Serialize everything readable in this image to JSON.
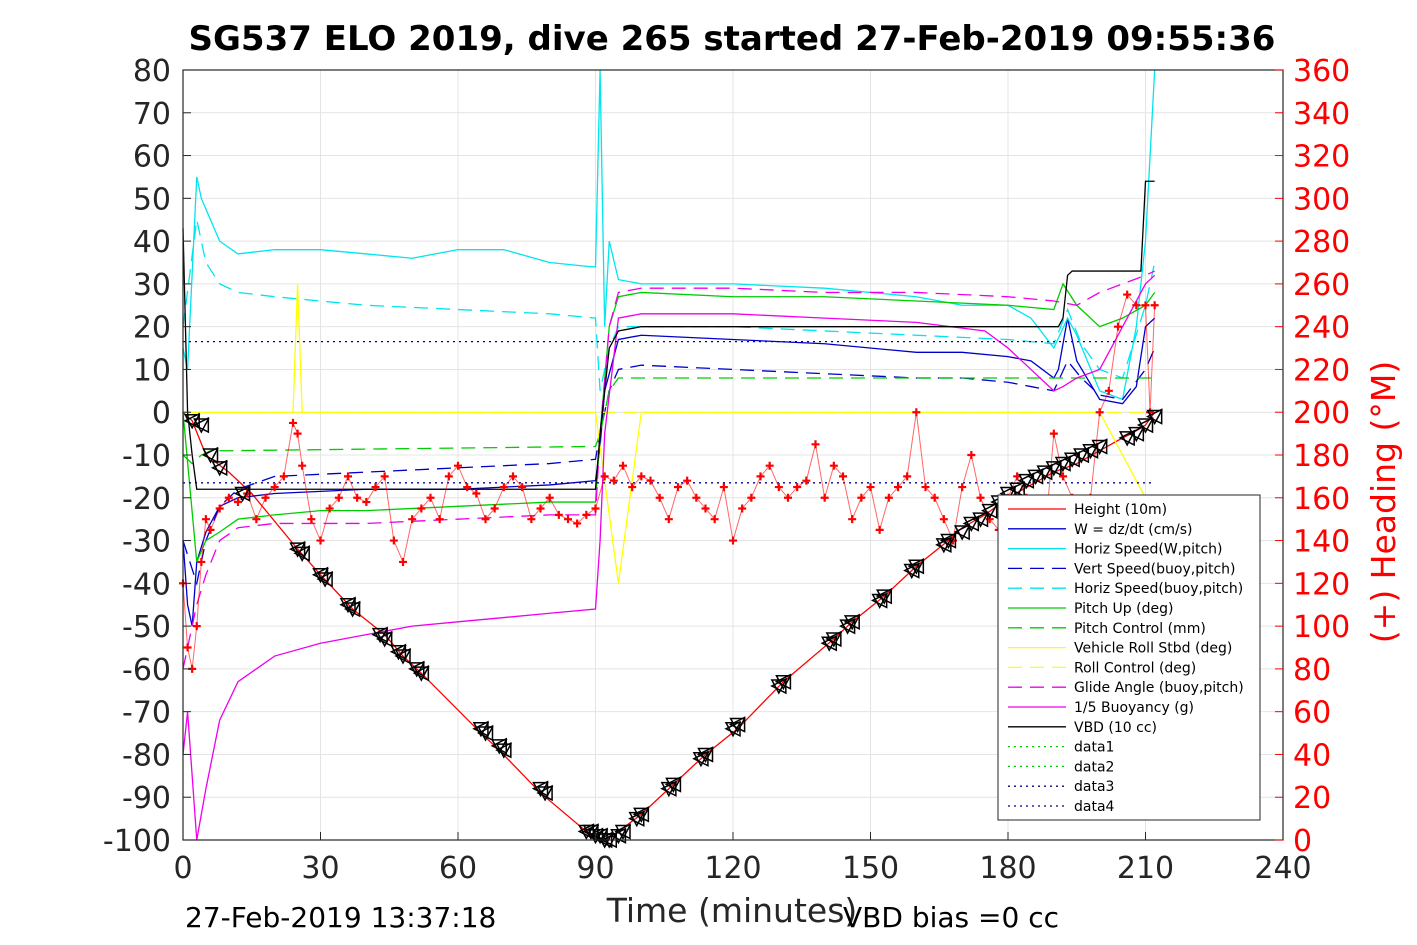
{
  "title": "SG537 ELO 2019, dive 265 started 27-Feb-2019 09:55:36",
  "footer_left": "27-Feb-2019 13:37:18",
  "footer_right": "VBD bias =0 cc",
  "colors": {
    "height": "#ff0000",
    "w": "#0000cd",
    "horiz_w": "#00e5ee",
    "vert_buoy": "#0000cd",
    "horiz_buoy": "#00e5ee",
    "pitch_up": "#00cc00",
    "pitch_ctrl": "#00cc00",
    "roll": "#ffff00",
    "roll_ctrl": "#ffff00",
    "glide": "#ee00ee",
    "buoyancy": "#ee00ee",
    "vbd": "#000000",
    "heading": "#ff0000",
    "data3": "#00008b",
    "right_axis": "#ff0000"
  },
  "chart_data": {
    "type": "line",
    "title": "SG537 ELO 2019, dive 265 started 27-Feb-2019 09:55:36",
    "xlabel": "Time (minutes)",
    "ylabel": "",
    "ylabel_right": "(+) Heading (°M)",
    "xlim": [
      0,
      240
    ],
    "ylim": [
      -100,
      80
    ],
    "ylim_right": [
      0,
      360
    ],
    "x_ticks": [
      0,
      30,
      60,
      90,
      120,
      150,
      180,
      210,
      240
    ],
    "y_ticks": [
      80,
      70,
      60,
      50,
      40,
      30,
      20,
      10,
      0,
      -10,
      -20,
      -30,
      -40,
      -50,
      -60,
      -70,
      -80,
      -90,
      -100
    ],
    "y_ticks_right": [
      360,
      340,
      320,
      300,
      280,
      260,
      240,
      220,
      200,
      180,
      160,
      140,
      120,
      100,
      80,
      60,
      40,
      20,
      0
    ],
    "grid": true,
    "legend_position": "lower-right",
    "legend": [
      "Height (10m)",
      "W = dz/dt (cm/s)",
      "Horiz Speed(W,pitch)",
      "Vert Speed(buoy,pitch)",
      "Horiz Speed(buoy,pitch)",
      "Pitch Up (deg)",
      "Pitch Control (mm)",
      "Vehicle Roll Stbd (deg)",
      "Roll Control (deg)",
      "Glide Angle (buoy,pitch)",
      "1/5 Buoyancy (g)",
      "VBD (10 cc)",
      "data1",
      "data2",
      "data3",
      "data4"
    ],
    "series": [
      {
        "name": "Height (10m)",
        "style": "solid",
        "color": "#ff0000",
        "x": [
          0,
          2,
          5,
          10,
          15,
          25,
          30,
          37,
          44,
          48,
          52,
          65,
          69,
          78,
          88,
          90,
          92,
          95,
          100,
          107,
          114,
          121,
          131,
          142,
          146,
          153,
          160,
          167,
          170,
          175,
          180,
          185,
          190,
          195,
          200,
          205,
          207,
          210,
          212
        ],
        "y": [
          0,
          -2,
          -10,
          -14,
          -19,
          -32,
          -38,
          -46,
          -52,
          -57,
          -61,
          -75,
          -79,
          -89,
          -98,
          -99,
          -100,
          -98,
          -94,
          -87,
          -80,
          -74,
          -63,
          -53,
          -49,
          -43,
          -36,
          -30,
          -27,
          -24,
          -20,
          -17,
          -14,
          -12,
          -9,
          -6,
          -5,
          -3,
          0
        ]
      },
      {
        "name": "W = dz/dt (cm/s)",
        "style": "solid",
        "color": "#0000cd",
        "x": [
          0,
          1,
          2,
          3,
          5,
          8,
          12,
          20,
          40,
          60,
          80,
          90,
          91,
          92,
          95,
          100,
          120,
          140,
          160,
          170,
          180,
          185,
          190,
          191,
          193,
          195,
          200,
          205,
          208,
          210,
          212
        ],
        "y": [
          -30,
          -45,
          -50,
          -35,
          -28,
          -22,
          -20,
          -19,
          -18,
          -18,
          -17,
          -16,
          -8,
          5,
          17,
          18,
          17,
          16,
          14,
          14,
          13,
          12,
          8,
          10,
          22,
          12,
          3,
          2,
          6,
          20,
          22
        ]
      },
      {
        "name": "Horiz Speed(W,pitch)",
        "style": "solid",
        "color": "#00e5ee",
        "x": [
          0,
          1,
          3,
          4,
          6,
          8,
          12,
          20,
          30,
          40,
          50,
          60,
          70,
          80,
          89,
          90,
          91,
          92,
          93,
          95,
          100,
          120,
          140,
          160,
          170,
          180,
          185,
          190,
          193,
          195,
          200,
          205,
          208,
          210,
          212
        ],
        "y": [
          15,
          10,
          55,
          50,
          45,
          40,
          37,
          38,
          38,
          37,
          36,
          38,
          38,
          35,
          34,
          34,
          80,
          20,
          40,
          31,
          30,
          30,
          29,
          27,
          25,
          25,
          22,
          15,
          22,
          18,
          5,
          3,
          20,
          40,
          80
        ]
      },
      {
        "name": "Vert Speed(buoy,pitch)",
        "style": "dashed",
        "color": "#0000cd",
        "x": [
          0,
          3,
          5,
          8,
          12,
          20,
          40,
          60,
          80,
          90,
          91,
          93,
          95,
          100,
          120,
          140,
          160,
          170,
          180,
          185,
          190,
          193,
          196,
          200,
          205,
          210,
          212
        ],
        "y": [
          -30,
          -40,
          -30,
          -22,
          -18,
          -15,
          -14,
          -13,
          -12,
          -11,
          -5,
          5,
          10,
          11,
          10,
          9,
          8,
          8,
          7,
          6,
          5,
          12,
          8,
          4,
          3,
          10,
          15
        ]
      },
      {
        "name": "Horiz Speed(buoy,pitch)",
        "style": "dashed",
        "color": "#00e5ee",
        "x": [
          0,
          3,
          5,
          8,
          12,
          20,
          30,
          40,
          60,
          80,
          90,
          91,
          93,
          95,
          100,
          120,
          140,
          160,
          180,
          190,
          193,
          196,
          200,
          205,
          210,
          212
        ],
        "y": [
          20,
          45,
          35,
          30,
          28,
          27,
          26,
          25,
          24,
          23,
          22,
          5,
          15,
          20,
          20,
          20,
          19,
          18,
          17,
          16,
          24,
          16,
          10,
          8,
          25,
          35
        ]
      },
      {
        "name": "Pitch Up (deg)",
        "style": "solid",
        "color": "#00cc00",
        "x": [
          0,
          3,
          5,
          8,
          12,
          20,
          30,
          40,
          60,
          80,
          90,
          91,
          93,
          95,
          100,
          120,
          140,
          160,
          180,
          190,
          192,
          195,
          200,
          205,
          210,
          212
        ],
        "y": [
          0,
          -35,
          -30,
          -28,
          -25,
          -24,
          -23,
          -23,
          -22,
          -21,
          -21,
          -5,
          20,
          27,
          28,
          27,
          27,
          26,
          25,
          24,
          30,
          25,
          20,
          22,
          25,
          28
        ]
      },
      {
        "name": "Pitch Control (mm)",
        "style": "dashed",
        "color": "#00cc00",
        "x": [
          0,
          2,
          4,
          6,
          10,
          90,
          91,
          93,
          95,
          120,
          190,
          192,
          195,
          200,
          210,
          212
        ],
        "y": [
          -10,
          -12,
          -10,
          -9,
          -9,
          -8,
          -5,
          5,
          8,
          8,
          8,
          8,
          8,
          8,
          8,
          8
        ]
      },
      {
        "name": "Vehicle Roll Stbd (deg)",
        "style": "solid",
        "color": "#ffff00",
        "x": [
          0,
          5,
          10,
          20,
          24,
          25,
          26,
          30,
          40,
          50,
          60,
          70,
          80,
          90,
          95,
          100,
          110,
          120,
          130,
          140,
          150,
          160,
          170,
          180,
          190,
          200,
          210
        ],
        "y": [
          0,
          0,
          0,
          0,
          0,
          30,
          0,
          0,
          0,
          0,
          0,
          0,
          0,
          0,
          -40,
          0,
          0,
          0,
          0,
          0,
          0,
          0,
          0,
          0,
          0,
          0,
          -20
        ]
      },
      {
        "name": "Roll Control (deg)",
        "style": "dashed",
        "color": "#ffff00",
        "x": [
          0,
          10,
          50,
          90,
          91,
          100,
          150,
          180,
          210
        ],
        "y": [
          0,
          0,
          0,
          0,
          0,
          0,
          0,
          0,
          0
        ]
      },
      {
        "name": "Glide Angle (buoy,pitch)",
        "style": "dashed",
        "color": "#ee00ee",
        "x": [
          0,
          3,
          5,
          8,
          12,
          20,
          40,
          60,
          80,
          90,
          91,
          93,
          95,
          100,
          120,
          140,
          160,
          180,
          190,
          195,
          200,
          205,
          210,
          212
        ],
        "y": [
          -60,
          -45,
          -38,
          -30,
          -27,
          -26,
          -26,
          -25,
          -24,
          -24,
          -5,
          20,
          28,
          29,
          29,
          28,
          28,
          27,
          26,
          25,
          28,
          30,
          32,
          33
        ]
      },
      {
        "name": "1/5 Buoyancy (g)",
        "style": "solid",
        "color": "#ee00ee",
        "x": [
          0,
          1,
          3,
          5,
          8,
          12,
          20,
          30,
          40,
          50,
          60,
          70,
          80,
          90,
          91,
          92,
          95,
          100,
          120,
          140,
          160,
          175,
          180,
          185,
          190,
          192,
          195,
          200,
          205,
          210,
          212
        ],
        "y": [
          -80,
          -70,
          -100,
          -88,
          -72,
          -63,
          -57,
          -54,
          -52,
          -50,
          -49,
          -48,
          -47,
          -46,
          -30,
          -5,
          22,
          23,
          23,
          22,
          21,
          19,
          15,
          10,
          5,
          6,
          8,
          10,
          20,
          30,
          32
        ]
      },
      {
        "name": "VBD (10 cc)",
        "style": "solid",
        "color": "#000000",
        "x": [
          0,
          1,
          2,
          3,
          90,
          91,
          93,
          95,
          100,
          190,
          191,
          192,
          193,
          194,
          195,
          208,
          209,
          210,
          212
        ],
        "y": [
          43,
          0,
          -10,
          -18,
          -18,
          -5,
          15,
          19,
          20,
          20,
          20,
          22,
          32,
          33,
          33,
          33,
          33,
          54,
          54
        ]
      },
      {
        "name": "data3",
        "style": "dotted",
        "color": "#00008b",
        "x": [
          0,
          212
        ],
        "y": [
          16.5,
          16.5
        ]
      },
      {
        "name": "data4",
        "style": "dotted",
        "color": "#00008b",
        "x": [
          0,
          212
        ],
        "y": [
          -16.5,
          -16.5
        ]
      }
    ],
    "heading_series": {
      "name": "Heading",
      "axis": "right",
      "color": "#ff0000",
      "marker": "+",
      "x": [
        0,
        1,
        2,
        3,
        4,
        5,
        6,
        8,
        10,
        12,
        14,
        16,
        18,
        20,
        22,
        24,
        25,
        26,
        28,
        30,
        32,
        34,
        36,
        38,
        40,
        42,
        44,
        46,
        48,
        50,
        52,
        54,
        56,
        58,
        60,
        62,
        64,
        66,
        68,
        70,
        72,
        74,
        76,
        78,
        80,
        82,
        84,
        86,
        88,
        90,
        92,
        94,
        96,
        98,
        100,
        102,
        104,
        106,
        108,
        110,
        112,
        114,
        116,
        118,
        120,
        122,
        124,
        126,
        128,
        130,
        132,
        134,
        136,
        138,
        140,
        142,
        144,
        146,
        148,
        150,
        152,
        154,
        156,
        158,
        160,
        162,
        164,
        166,
        168,
        170,
        172,
        174,
        176,
        178,
        180,
        182,
        184,
        186,
        188,
        190,
        192,
        194,
        196,
        198,
        200,
        202,
        204,
        206,
        208,
        210,
        211,
        212
      ],
      "y": [
        120,
        90,
        80,
        100,
        130,
        150,
        145,
        155,
        160,
        158,
        162,
        150,
        160,
        165,
        170,
        195,
        190,
        175,
        150,
        140,
        155,
        160,
        170,
        160,
        158,
        165,
        170,
        140,
        130,
        150,
        155,
        160,
        150,
        170,
        175,
        165,
        162,
        150,
        155,
        165,
        170,
        165,
        150,
        155,
        160,
        152,
        150,
        148,
        152,
        155,
        170,
        168,
        175,
        165,
        170,
        168,
        160,
        150,
        165,
        168,
        160,
        155,
        150,
        165,
        140,
        155,
        160,
        170,
        175,
        165,
        160,
        165,
        168,
        185,
        160,
        175,
        170,
        150,
        160,
        165,
        145,
        160,
        165,
        170,
        200,
        165,
        160,
        150,
        140,
        165,
        180,
        160,
        150,
        145,
        160,
        170,
        160,
        150,
        140,
        190,
        170,
        160,
        150,
        160,
        200,
        210,
        240,
        255,
        250,
        250,
        200,
        250
      ]
    },
    "markers": {
      "name": "samples",
      "style": "triangles",
      "x": [
        2,
        4,
        6,
        8,
        13,
        25,
        26,
        30,
        31,
        36,
        37,
        43,
        44,
        47,
        48,
        51,
        52,
        65,
        66,
        69,
        70,
        78,
        79,
        88,
        89,
        90,
        91,
        92,
        93,
        95,
        96,
        99,
        100,
        106,
        107,
        113,
        114,
        120,
        121,
        130,
        131,
        141,
        142,
        145,
        146,
        152,
        153,
        159,
        160,
        166,
        167,
        170,
        172,
        174,
        176,
        178,
        180,
        182,
        184,
        186,
        188,
        190,
        192,
        194,
        196,
        198,
        200,
        206,
        208,
        210,
        212
      ],
      "y": [
        -2,
        -3,
        -10,
        -13,
        -19,
        -32,
        -33,
        -38,
        -39,
        -45,
        -46,
        -52,
        -53,
        -56,
        -57,
        -60,
        -61,
        -74,
        -75,
        -78,
        -79,
        -88,
        -89,
        -98,
        -98,
        -99,
        -99,
        -100,
        -100,
        -99,
        -98,
        -95,
        -94,
        -88,
        -87,
        -81,
        -80,
        -74,
        -73,
        -64,
        -63,
        -54,
        -53,
        -50,
        -49,
        -44,
        -43,
        -37,
        -36,
        -31,
        -30,
        -28,
        -26,
        -25,
        -23,
        -21,
        -19,
        -18,
        -16,
        -15,
        -14,
        -13,
        -12,
        -11,
        -10,
        -9,
        -8,
        -6,
        -5,
        -3,
        -1
      ]
    }
  }
}
